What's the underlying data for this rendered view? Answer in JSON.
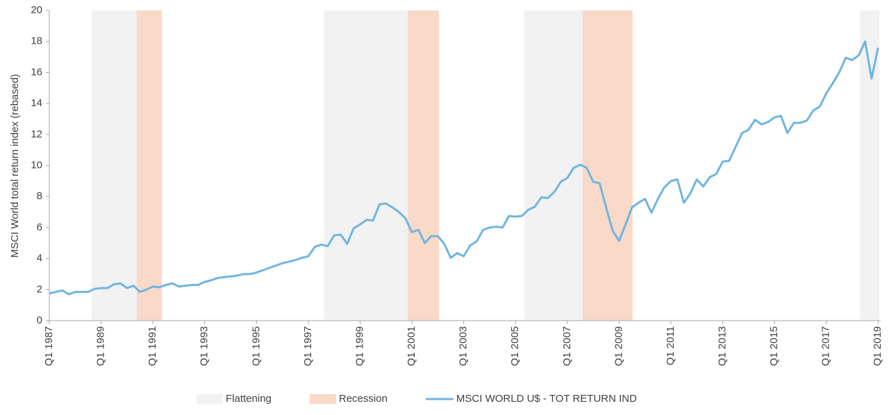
{
  "chart_data": {
    "type": "line",
    "y_label": "MSCI World total return index (rebased)",
    "x": [
      1987,
      1987.25,
      1987.5,
      1987.75,
      1988,
      1988.25,
      1988.5,
      1988.75,
      1989,
      1989.25,
      1989.5,
      1989.75,
      1990,
      1990.25,
      1990.5,
      1990.75,
      1991,
      1991.25,
      1991.5,
      1991.75,
      1992,
      1992.25,
      1992.5,
      1992.75,
      1993,
      1993.25,
      1993.5,
      1993.75,
      1994,
      1994.25,
      1994.5,
      1994.75,
      1995,
      1995.25,
      1995.5,
      1995.75,
      1996,
      1996.25,
      1996.5,
      1996.75,
      1997,
      1997.25,
      1997.5,
      1997.75,
      1998,
      1998.25,
      1998.5,
      1998.75,
      1999,
      1999.25,
      1999.5,
      1999.75,
      2000,
      2000.25,
      2000.5,
      2000.75,
      2001,
      2001.25,
      2001.5,
      2001.75,
      2002,
      2002.25,
      2002.5,
      2002.75,
      2003,
      2003.25,
      2003.5,
      2003.75,
      2004,
      2004.25,
      2004.5,
      2004.75,
      2005,
      2005.25,
      2005.5,
      2005.75,
      2006,
      2006.25,
      2006.5,
      2006.75,
      2007,
      2007.25,
      2007.5,
      2007.75,
      2008,
      2008.25,
      2008.5,
      2008.75,
      2009,
      2009.25,
      2009.5,
      2009.75,
      2010,
      2010.25,
      2010.5,
      2010.75,
      2011,
      2011.25,
      2011.5,
      2011.75,
      2012,
      2012.25,
      2012.5,
      2012.75,
      2013,
      2013.25,
      2013.5,
      2013.75,
      2014,
      2014.25,
      2014.5,
      2014.75,
      2015,
      2015.25,
      2015.5,
      2015.75,
      2016,
      2016.25,
      2016.5,
      2016.75,
      2017,
      2017.25,
      2017.5,
      2017.75,
      2018,
      2018.25,
      2018.5,
      2018.75,
      2019
    ],
    "series": [
      {
        "name": "MSCI WORLD U$ - TOT RETURN IND",
        "color": "#6fb5e0",
        "values": [
          1.75,
          1.85,
          1.95,
          1.7,
          1.85,
          1.85,
          1.85,
          2.05,
          2.1,
          2.1,
          2.35,
          2.4,
          2.1,
          2.25,
          1.85,
          2.0,
          2.2,
          2.15,
          2.3,
          2.4,
          2.2,
          2.25,
          2.3,
          2.3,
          2.5,
          2.6,
          2.75,
          2.8,
          2.85,
          2.9,
          3.0,
          3.0,
          3.1,
          3.25,
          3.4,
          3.55,
          3.7,
          3.8,
          3.9,
          4.05,
          4.15,
          4.75,
          4.9,
          4.8,
          5.5,
          5.55,
          4.95,
          5.95,
          6.2,
          6.5,
          6.45,
          7.5,
          7.55,
          7.3,
          7.0,
          6.6,
          5.7,
          5.85,
          5.0,
          5.45,
          5.45,
          4.95,
          4.05,
          4.35,
          4.15,
          4.85,
          5.1,
          5.85,
          6.0,
          6.05,
          6.0,
          6.75,
          6.7,
          6.75,
          7.15,
          7.35,
          7.95,
          7.9,
          8.3,
          8.95,
          9.2,
          9.85,
          10.05,
          9.85,
          8.95,
          8.85,
          7.3,
          5.8,
          5.15,
          6.2,
          7.3,
          7.6,
          7.85,
          6.95,
          7.85,
          8.6,
          9.0,
          9.1,
          7.6,
          8.2,
          9.1,
          8.65,
          9.25,
          9.45,
          10.25,
          10.3,
          11.2,
          12.1,
          12.3,
          12.95,
          12.65,
          12.8,
          13.1,
          13.2,
          12.1,
          12.75,
          12.75,
          12.9,
          13.55,
          13.8,
          14.65,
          15.3,
          16.0,
          16.95,
          16.8,
          17.1,
          18.0,
          15.6,
          17.6
        ]
      }
    ],
    "bands": [
      {
        "name": "Flattening",
        "color": "#f2f2f2",
        "spans": [
          [
            1988.63,
            1990.37
          ],
          [
            1997.6,
            2000.84
          ],
          [
            2005.34,
            2007.59
          ],
          [
            2018.3,
            2019.05
          ]
        ]
      },
      {
        "name": "Recession",
        "color": "#f9d9c8",
        "spans": [
          [
            1990.37,
            1991.34
          ],
          [
            2000.84,
            2002.05
          ],
          [
            2007.59,
            2009.52
          ]
        ]
      }
    ],
    "xlim": [
      1987,
      2019.1
    ],
    "xticks": [
      {
        "value": 1987,
        "label": "Q1 1987"
      },
      {
        "value": 1989,
        "label": "Q1 1989"
      },
      {
        "value": 1991,
        "label": "Q1 1991"
      },
      {
        "value": 1993,
        "label": "Q1 1993"
      },
      {
        "value": 1995,
        "label": "Q1 1995"
      },
      {
        "value": 1997,
        "label": "Q1 1997"
      },
      {
        "value": 1999,
        "label": "Q1 1999"
      },
      {
        "value": 2001,
        "label": "Q1 2001"
      },
      {
        "value": 2003,
        "label": "Q1 2003"
      },
      {
        "value": 2005,
        "label": "Q1 2005"
      },
      {
        "value": 2007,
        "label": "Q1 2007"
      },
      {
        "value": 2009,
        "label": "Q1 2009"
      },
      {
        "value": 2011,
        "label": "Q1 2011"
      },
      {
        "value": 2013,
        "label": "Q1 2013"
      },
      {
        "value": 2015,
        "label": "Q1 2015"
      },
      {
        "value": 2017,
        "label": "Q1 2017"
      },
      {
        "value": 2019,
        "label": "Q1 2019"
      }
    ],
    "ylim": [
      0,
      20
    ],
    "yticks": [
      0,
      2,
      4,
      6,
      8,
      10,
      12,
      14,
      16,
      18,
      20
    ],
    "grid": false
  }
}
